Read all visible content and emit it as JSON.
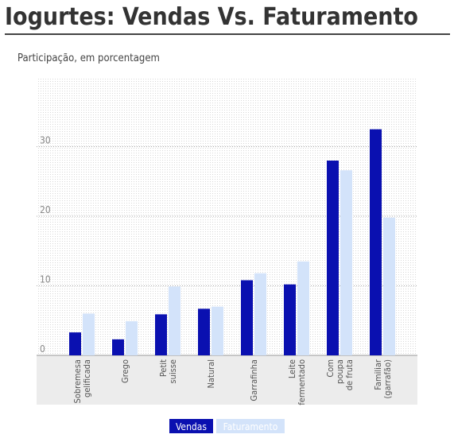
{
  "chart_data": {
    "type": "bar",
    "title": "Iogurtes: Vendas Vs. Faturamento",
    "subtitle": "Participação, em porcentagem",
    "categories": [
      "Sobremesa\ngelificada",
      "Grego",
      "Petit\nsuisse",
      "Natural",
      "Garrafinha",
      "Leite\nfermentado",
      "Com\npoupa\nde fruta",
      "Familiar\n(garrafão)"
    ],
    "series": [
      {
        "name": "Vendas",
        "color": "#0a10b0",
        "values": [
          3.3,
          2.3,
          5.9,
          6.7,
          10.8,
          10.2,
          28.0,
          32.5
        ]
      },
      {
        "name": "Faturamento",
        "color": "#d3e3fa",
        "values": [
          6.0,
          4.9,
          9.9,
          7.0,
          11.8,
          13.5,
          26.6,
          19.8
        ]
      }
    ],
    "ylim": [
      0,
      40
    ],
    "yticks": [
      0,
      10,
      20,
      30
    ],
    "grid": true,
    "legend": "bottom"
  }
}
